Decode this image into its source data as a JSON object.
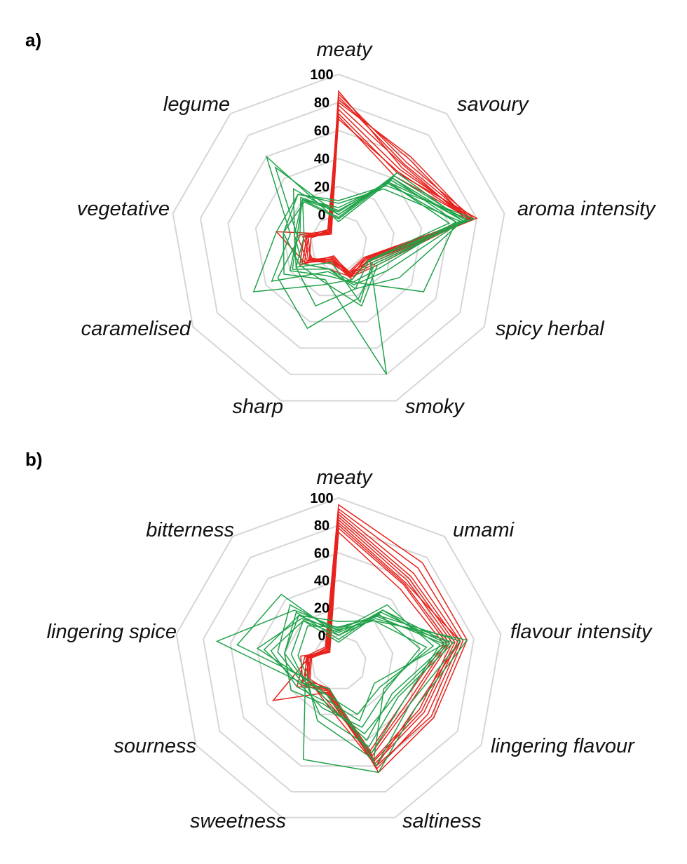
{
  "chart_data": [
    {
      "panel_label": "a)",
      "type": "radar",
      "axes": [
        "meaty",
        "savoury",
        "aroma intensity",
        "spicy herbal",
        "smoky",
        "sharp",
        "caramelised",
        "vegetative",
        "legume"
      ],
      "r_ticks": [
        "0",
        "20",
        "40",
        "60",
        "80",
        "100"
      ],
      "rlim": [
        -20,
        100
      ],
      "grid": true,
      "colors": {
        "red": "#e8221c",
        "green": "#21a24a",
        "grid": "#d6d6d6"
      },
      "series": [
        {
          "color": "#e8221c",
          "values": [
            88,
            50,
            75,
            10,
            5,
            -10,
            12,
            5,
            -10
          ]
        },
        {
          "color": "#e8221c",
          "values": [
            86,
            55,
            78,
            5,
            4,
            -8,
            10,
            3,
            -12
          ]
        },
        {
          "color": "#e8221c",
          "values": [
            84,
            53,
            76,
            3,
            5,
            -7,
            6,
            10,
            -9
          ]
        },
        {
          "color": "#e8221c",
          "values": [
            82,
            58,
            74,
            2,
            3,
            -6,
            8,
            2,
            -10
          ]
        },
        {
          "color": "#e8221c",
          "values": [
            80,
            60,
            76,
            1,
            2,
            -9,
            5,
            4,
            -11
          ]
        },
        {
          "color": "#e8221c",
          "values": [
            78,
            52,
            73,
            12,
            6,
            -5,
            2,
            6,
            -8
          ]
        },
        {
          "color": "#e8221c",
          "values": [
            75,
            48,
            77,
            8,
            4,
            -4,
            4,
            0,
            -10
          ]
        },
        {
          "color": "#e8221c",
          "values": [
            72,
            45,
            80,
            6,
            3,
            -7,
            3,
            2,
            -9
          ]
        },
        {
          "color": "#e8221c",
          "values": [
            70,
            42,
            76,
            4,
            8,
            -6,
            8,
            25,
            -12
          ]
        },
        {
          "color": "#e8221c",
          "values": [
            68,
            46,
            75,
            2,
            6,
            0,
            10,
            3,
            -10
          ]
        },
        {
          "color": "#21a24a",
          "values": [
            5,
            35,
            65,
            15,
            10,
            5,
            20,
            10,
            20
          ]
        },
        {
          "color": "#21a24a",
          "values": [
            -5,
            38,
            70,
            20,
            12,
            2,
            35,
            15,
            60
          ]
        },
        {
          "color": "#21a24a",
          "values": [
            0,
            42,
            72,
            8,
            25,
            -5,
            15,
            12,
            30
          ]
        },
        {
          "color": "#21a24a",
          "values": [
            8,
            30,
            68,
            6,
            80,
            8,
            25,
            20,
            25
          ]
        },
        {
          "color": "#21a24a",
          "values": [
            -2,
            45,
            70,
            30,
            15,
            28,
            15,
            5,
            20
          ]
        },
        {
          "color": "#21a24a",
          "values": [
            3,
            36,
            74,
            10,
            22,
            45,
            30,
            8,
            22
          ]
        },
        {
          "color": "#21a24a",
          "values": [
            2,
            40,
            65,
            50,
            10,
            0,
            10,
            12,
            20
          ]
        },
        {
          "color": "#21a24a",
          "values": [
            10,
            33,
            78,
            5,
            8,
            12,
            50,
            25,
            25
          ]
        },
        {
          "color": "#21a24a",
          "values": [
            -3,
            40,
            70,
            12,
            28,
            10,
            12,
            20,
            18
          ]
        },
        {
          "color": "#21a24a",
          "values": [
            0,
            36,
            60,
            5,
            15,
            0,
            18,
            10,
            50
          ]
        }
      ]
    },
    {
      "panel_label": "b)",
      "type": "radar",
      "axes": [
        "meaty",
        "umami",
        "flavour intensity",
        "lingering flavour",
        "saltiness",
        "sweetness",
        "sourness",
        "lingering spice",
        "bitterness"
      ],
      "r_ticks": [
        "0",
        "20",
        "40",
        "60",
        "80",
        "100"
      ],
      "rlim": [
        -20,
        100
      ],
      "grid": true,
      "colors": {
        "red": "#e8221c",
        "green": "#21a24a",
        "grid": "#d6d6d6"
      },
      "series": [
        {
          "color": "#e8221c",
          "values": [
            95,
            75,
            75,
            60,
            65,
            0,
            15,
            5,
            -5
          ]
        },
        {
          "color": "#e8221c",
          "values": [
            92,
            70,
            72,
            58,
            60,
            5,
            10,
            3,
            -8
          ]
        },
        {
          "color": "#e8221c",
          "values": [
            90,
            65,
            70,
            55,
            62,
            3,
            35,
            2,
            -6
          ]
        },
        {
          "color": "#e8221c",
          "values": [
            88,
            62,
            68,
            52,
            58,
            2,
            12,
            0,
            -9
          ]
        },
        {
          "color": "#e8221c",
          "values": [
            86,
            60,
            66,
            50,
            56,
            4,
            8,
            4,
            -7
          ]
        },
        {
          "color": "#e8221c",
          "values": [
            84,
            58,
            64,
            48,
            55,
            0,
            6,
            2,
            -10
          ]
        },
        {
          "color": "#e8221c",
          "values": [
            82,
            56,
            70,
            45,
            60,
            10,
            5,
            1,
            -8
          ]
        },
        {
          "color": "#e8221c",
          "values": [
            80,
            55,
            62,
            40,
            52,
            2,
            4,
            0,
            -6
          ]
        },
        {
          "color": "#e8221c",
          "values": [
            78,
            54,
            60,
            38,
            50,
            1,
            10,
            8,
            -10
          ]
        },
        {
          "color": "#e8221c",
          "values": [
            75,
            50,
            58,
            35,
            48,
            8,
            6,
            3,
            -9
          ]
        },
        {
          "color": "#21a24a",
          "values": [
            5,
            25,
            70,
            40,
            60,
            0,
            10,
            70,
            30
          ]
        },
        {
          "color": "#21a24a",
          "values": [
            0,
            30,
            55,
            35,
            50,
            5,
            5,
            55,
            45
          ]
        },
        {
          "color": "#21a24a",
          "values": [
            10,
            20,
            75,
            45,
            65,
            55,
            8,
            20,
            25
          ]
        },
        {
          "color": "#21a24a",
          "values": [
            -5,
            28,
            60,
            25,
            40,
            10,
            15,
            30,
            20
          ]
        },
        {
          "color": "#21a24a",
          "values": [
            3,
            35,
            50,
            15,
            20,
            5,
            10,
            25,
            35
          ]
        },
        {
          "color": "#21a24a",
          "values": [
            0,
            22,
            65,
            30,
            45,
            20,
            8,
            15,
            20
          ]
        },
        {
          "color": "#21a24a",
          "values": [
            2,
            26,
            40,
            20,
            30,
            15,
            12,
            35,
            25
          ]
        },
        {
          "color": "#21a24a",
          "values": [
            6,
            24,
            58,
            10,
            25,
            8,
            5,
            10,
            15
          ]
        },
        {
          "color": "#21a24a",
          "values": [
            -3,
            30,
            62,
            28,
            35,
            12,
            20,
            20,
            28
          ]
        },
        {
          "color": "#21a24a",
          "values": [
            4,
            20,
            45,
            18,
            55,
            25,
            6,
            40,
            22
          ]
        }
      ]
    }
  ]
}
